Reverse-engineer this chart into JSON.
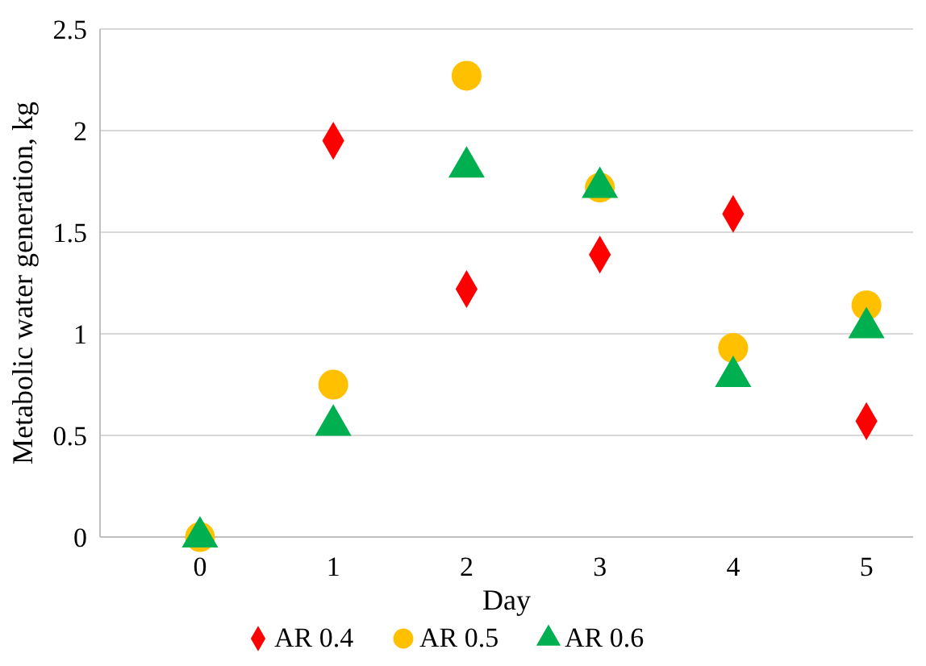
{
  "chart_data": {
    "type": "scatter",
    "xlabel": "Day",
    "ylabel": "Metabolic water generation, kg",
    "x": [
      0,
      1,
      2,
      3,
      4,
      5
    ],
    "xlim": [
      -0.75,
      5.35
    ],
    "xticks": [
      0,
      1,
      2,
      3,
      4,
      5
    ],
    "ylim": [
      0,
      2.5
    ],
    "yticks": [
      0,
      0.5,
      1,
      1.5,
      2,
      2.5
    ],
    "grid": "y",
    "legend": "bottom",
    "series": [
      {
        "name": "AR 0.4",
        "color": "#ff0000",
        "marker": "diamond",
        "values": [
          null,
          1.95,
          1.22,
          1.39,
          1.59,
          0.57
        ]
      },
      {
        "name": "AR 0.5",
        "color": "#ffc000",
        "marker": "circle",
        "values": [
          0,
          0.75,
          2.27,
          1.72,
          0.93,
          1.14
        ]
      },
      {
        "name": "AR 0.6",
        "color": "#00b050",
        "marker": "triangle",
        "values": [
          0,
          0.55,
          1.82,
          1.72,
          0.79,
          1.03
        ]
      }
    ]
  }
}
